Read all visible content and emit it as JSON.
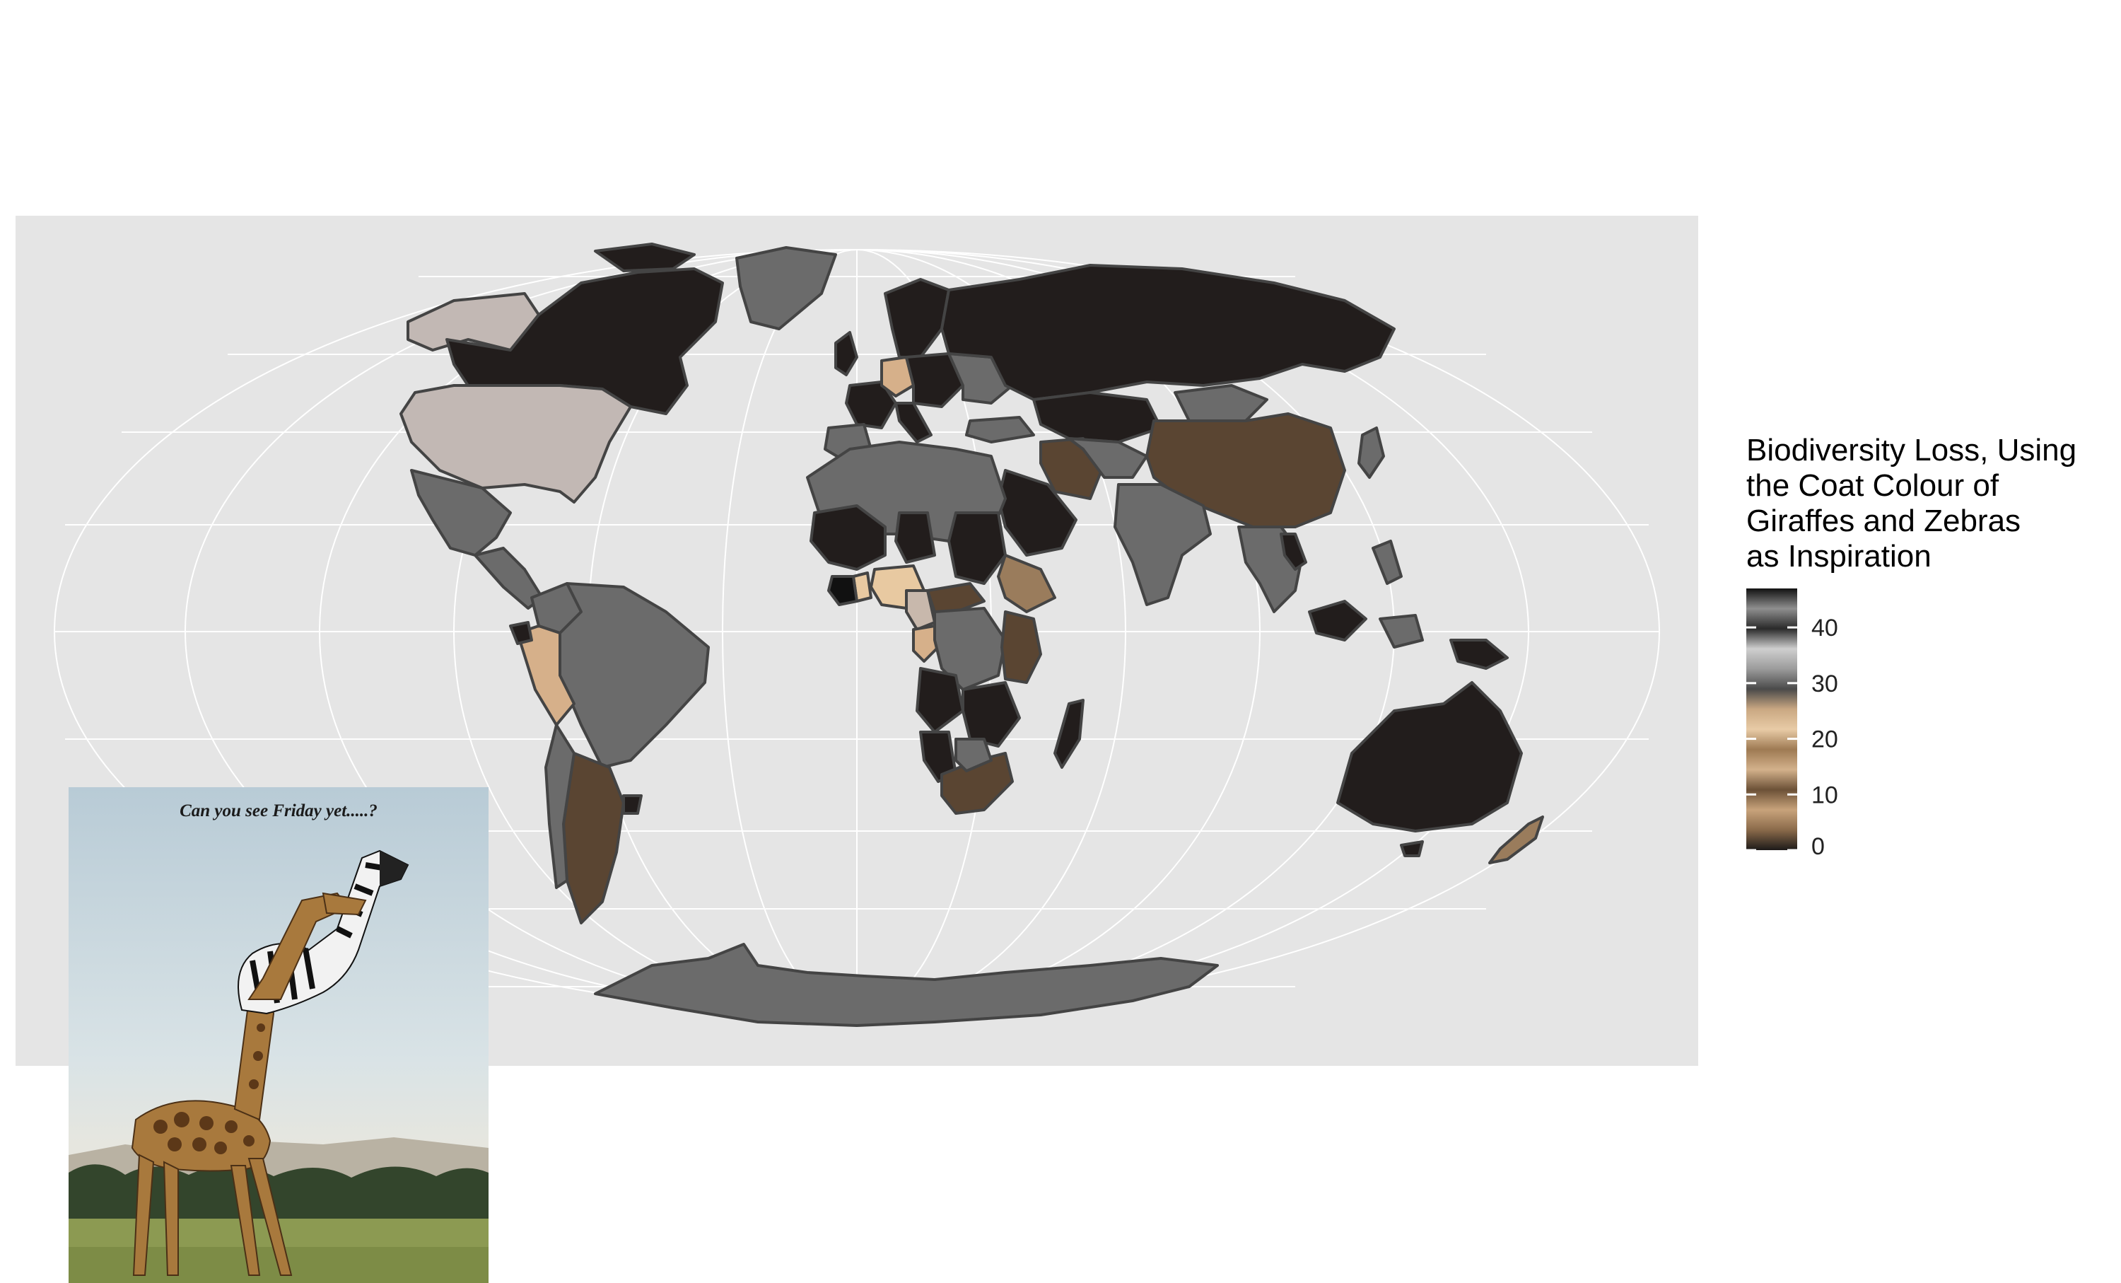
{
  "inset": {
    "caption": "Can you see Friday yet.....?"
  },
  "legend": {
    "title": "Biodiversity Loss, Using\nthe Coat Colour of\nGiraffes and Zebras\nas Inspiration",
    "ticks": [
      "0",
      "10",
      "20",
      "30",
      "40"
    ],
    "tick_values": [
      0,
      10,
      20,
      30,
      40
    ],
    "range": [
      0,
      47
    ],
    "gradient_colors": [
      "#1d1a19",
      "#8a6a4a",
      "#c8a37b",
      "#6c5137",
      "#d3b18b",
      "#9e7a53",
      "#e8cba6",
      "#caa882",
      "#4a4a4a",
      "#9b9b9b",
      "#cfcfcf",
      "#2a2a2a",
      "#8f8f8f",
      "#111111"
    ]
  },
  "colors": {
    "panel_bg": "#e5e5e5",
    "no_data": "#6b6b6b",
    "dark": "#221d1c",
    "light_grey": "#c2b8b4",
    "brown": "#5a4532",
    "tan": "#d6b08a",
    "light_tan": "#e8c9a1",
    "border": "#444444"
  }
}
